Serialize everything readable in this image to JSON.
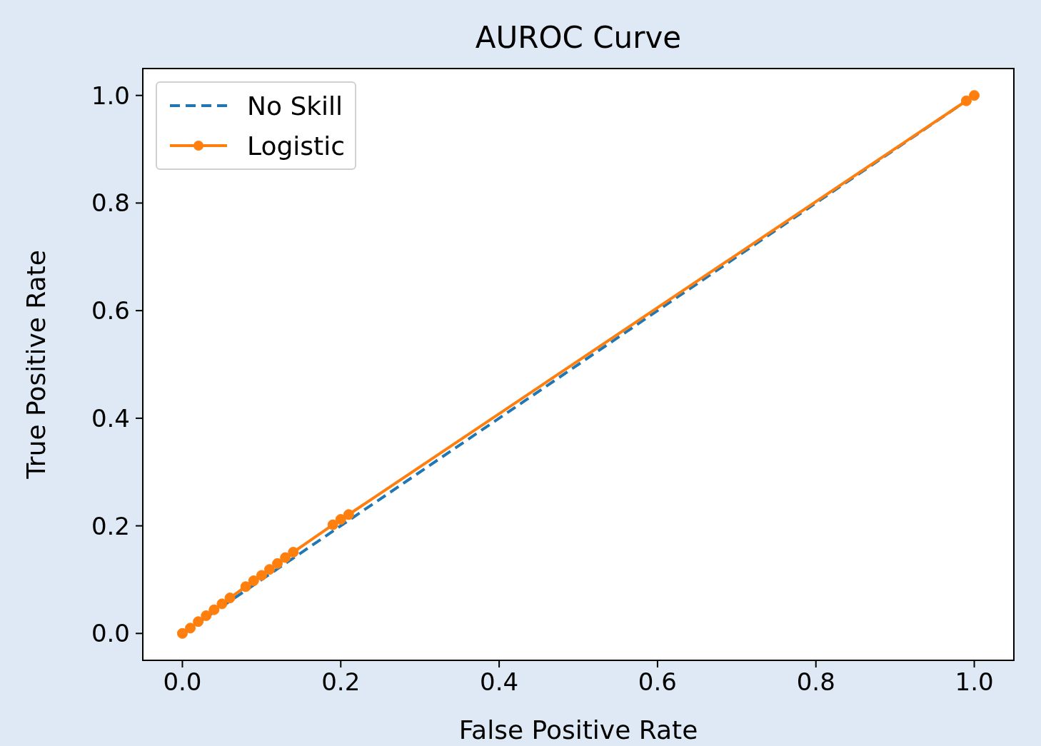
{
  "chart_data": {
    "type": "line",
    "title": "AUROC Curve",
    "xlabel": "False Positive Rate",
    "ylabel": "True Positive Rate",
    "xlim": [
      -0.05,
      1.05
    ],
    "ylim": [
      -0.05,
      1.05
    ],
    "xticks": [
      {
        "value": 0,
        "label": "0.0"
      },
      0.2,
      0.4,
      0.6,
      0.8,
      {
        "value": 1,
        "label": "1.0"
      }
    ],
    "yticks": [
      {
        "value": 0,
        "label": "0.0"
      },
      0.2,
      0.4,
      0.6,
      0.8,
      {
        "value": 1,
        "label": "1.0"
      }
    ],
    "legend": "top left",
    "series": [
      {
        "name": "No Skill",
        "color": "#1f77b4",
        "x": [
          0,
          1
        ],
        "values": [
          0,
          1
        ],
        "line_style": "dashed",
        "marker": "none"
      },
      {
        "name": "Logistic",
        "color": "#ff7f0e",
        "x": [
          0,
          0.01,
          0.02,
          0.03,
          0.04,
          0.05,
          0.06,
          0.08,
          0.09,
          0.1,
          0.11,
          0.12,
          0.13,
          0.14,
          0.19,
          0.2,
          0.21,
          0.99,
          1
        ],
        "values": [
          0,
          0.01,
          0.022,
          0.033,
          0.044,
          0.055,
          0.066,
          0.087,
          0.098,
          0.108,
          0.119,
          0.13,
          0.141,
          0.151,
          0.202,
          0.212,
          0.221,
          0.99,
          1
        ],
        "line_style": "solid",
        "marker": "circle"
      }
    ]
  }
}
